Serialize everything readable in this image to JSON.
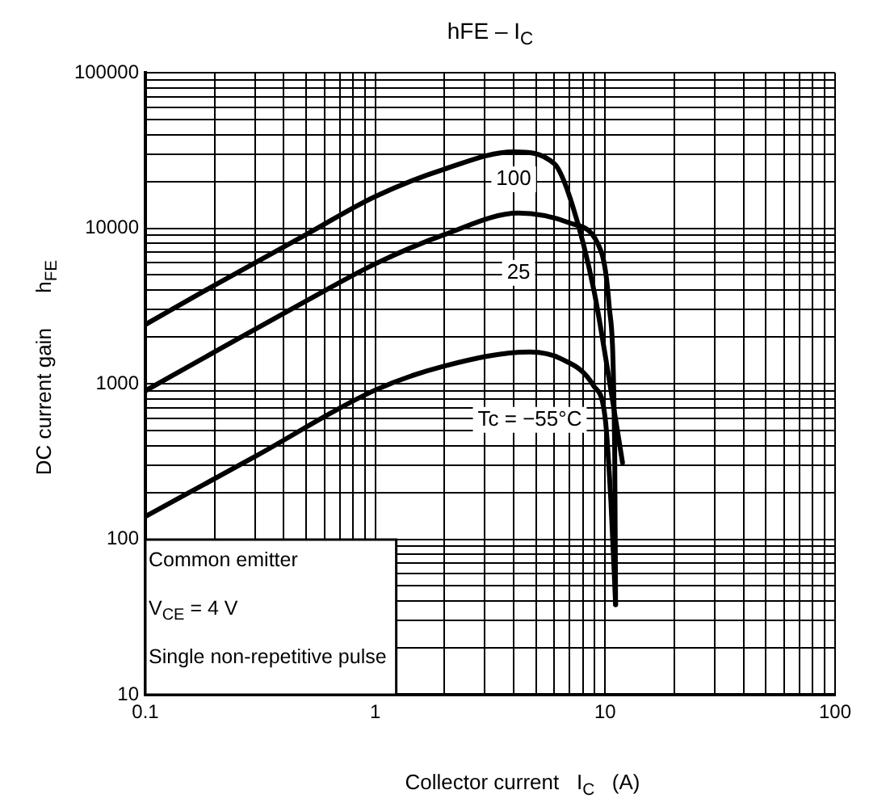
{
  "chart_data": {
    "type": "line",
    "title": "hFE – I$_{C}$",
    "xlabel": "Collector current   I$_{C}$   (A)",
    "ylabel": "DC current gain      h$_{FE}$",
    "log": "xy",
    "grid": true,
    "legend": false,
    "marker": "none",
    "line_style": "solid",
    "xlim": [
      0.1,
      100
    ],
    "ylim": [
      10,
      100000
    ],
    "xticks": [
      0.1,
      {
        "value": 0.2,
        "label": null
      },
      {
        "value": 0.3,
        "label": null
      },
      {
        "value": 0.4,
        "label": null
      },
      {
        "value": 0.5,
        "label": null
      },
      {
        "value": 0.6,
        "label": null
      },
      {
        "value": 0.7,
        "label": null
      },
      {
        "value": 0.8,
        "label": null
      },
      {
        "value": 0.9,
        "label": null
      },
      1,
      {
        "value": 2,
        "label": null
      },
      {
        "value": 3,
        "label": null
      },
      {
        "value": 4,
        "label": null
      },
      {
        "value": 5,
        "label": null
      },
      {
        "value": 6,
        "label": null
      },
      {
        "value": 7,
        "label": null
      },
      {
        "value": 8,
        "label": null
      },
      {
        "value": 9,
        "label": null
      },
      10,
      {
        "value": 20,
        "label": null
      },
      {
        "value": 30,
        "label": null
      },
      {
        "value": 40,
        "label": null
      },
      {
        "value": 50,
        "label": null
      },
      {
        "value": 60,
        "label": null
      },
      {
        "value": 70,
        "label": null
      },
      {
        "value": 80,
        "label": null
      },
      {
        "value": 90,
        "label": null
      },
      100
    ],
    "yticks": [
      10,
      {
        "value": 20,
        "label": null
      },
      {
        "value": 30,
        "label": null
      },
      {
        "value": 40,
        "label": null
      },
      {
        "value": 50,
        "label": null
      },
      {
        "value": 60,
        "label": null
      },
      {
        "value": 70,
        "label": null
      },
      {
        "value": 80,
        "label": null
      },
      {
        "value": 90,
        "label": null
      },
      100,
      {
        "value": 200,
        "label": null
      },
      {
        "value": 300,
        "label": null
      },
      {
        "value": 400,
        "label": null
      },
      {
        "value": 500,
        "label": null
      },
      {
        "value": 600,
        "label": null
      },
      {
        "value": 700,
        "label": null
      },
      {
        "value": 800,
        "label": null
      },
      {
        "value": 900,
        "label": null
      },
      1000,
      {
        "value": 2000,
        "label": null
      },
      {
        "value": 3000,
        "label": null
      },
      {
        "value": 4000,
        "label": null
      },
      {
        "value": 5000,
        "label": null
      },
      {
        "value": 6000,
        "label": null
      },
      {
        "value": 7000,
        "label": null
      },
      {
        "value": 8000,
        "label": null
      },
      {
        "value": 9000,
        "label": null
      },
      10000,
      {
        "value": 20000,
        "label": null
      },
      {
        "value": 30000,
        "label": null
      },
      {
        "value": 40000,
        "label": null
      },
      {
        "value": 50000,
        "label": null
      },
      {
        "value": 60000,
        "label": null
      },
      {
        "value": 70000,
        "label": null
      },
      {
        "value": 80000,
        "label": null
      },
      {
        "value": 90000,
        "label": null
      },
      100000
    ],
    "series": [
      {
        "name": "100",
        "color": "#000000",
        "x": [
          0.1,
          0.2,
          0.5,
          1,
          2,
          4,
          6,
          7,
          8.9,
          10.6,
          11.9
        ],
        "values": [
          2400,
          4300,
          9100,
          16000,
          24000,
          31000,
          26000,
          16000,
          4100,
          900,
          310
        ]
      },
      {
        "name": "25",
        "color": "#000000",
        "x": [
          0.1,
          0.2,
          0.5,
          1,
          2,
          4.2,
          7,
          9.6,
          10.4,
          11,
          11.1
        ],
        "values": [
          900,
          1600,
          3400,
          5900,
          9100,
          12500,
          10800,
          7100,
          3200,
          370,
          38
        ]
      },
      {
        "name": "Tc = −55°C",
        "color": "#000000",
        "x": [
          0.1,
          0.3,
          1,
          2,
          4.7,
          6.4,
          8.9,
          10,
          10.6,
          11.1
        ],
        "values": [
          140,
          340,
          910,
          1300,
          1600,
          1450,
          970,
          600,
          170,
          38
        ]
      }
    ],
    "annotations": [
      "Common emitter",
      "V$_{CE}$ = 4 V",
      "Single non-repetitive pulse"
    ]
  }
}
